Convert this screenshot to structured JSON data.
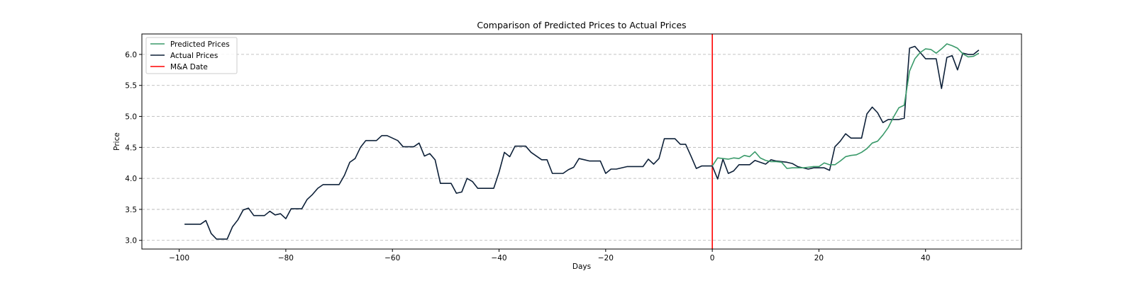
{
  "chart_data": {
    "type": "line",
    "title": "Comparison of Predicted Prices to Actual Prices",
    "xlabel": "Days",
    "ylabel": "Price",
    "xlim": [
      -107,
      58
    ],
    "ylim": [
      2.86,
      6.33
    ],
    "xticks": [
      -100,
      -80,
      -60,
      -40,
      -20,
      0,
      20,
      40
    ],
    "yticks": [
      3.0,
      3.5,
      4.0,
      4.5,
      5.0,
      5.5,
      6.0
    ],
    "grid": "horizontal dashed",
    "legend_position": "top-left",
    "colors": {
      "predicted": "#3a9a6a",
      "actual": "#0d2038",
      "ma_date": "#ff0000",
      "grid": "#b0b0b0"
    },
    "legend": [
      "Predicted Prices",
      "Actual Prices",
      "M&A Date"
    ],
    "vertical_line": {
      "name": "M&A Date",
      "x": 0
    },
    "series": [
      {
        "name": "Actual Prices",
        "x": [
          -99,
          -98,
          -97,
          -96,
          -95,
          -94,
          -93,
          -92,
          -91,
          -90,
          -89,
          -88,
          -87,
          -86,
          -85,
          -84,
          -83,
          -82,
          -81,
          -80,
          -79,
          -78,
          -77,
          -76,
          -75,
          -74,
          -73,
          -72,
          -71,
          -70,
          -69,
          -68,
          -67,
          -66,
          -65,
          -64,
          -63,
          -62,
          -61,
          -60,
          -59,
          -58,
          -57,
          -56,
          -55,
          -54,
          -53,
          -52,
          -51,
          -50,
          -49,
          -48,
          -47,
          -46,
          -45,
          -44,
          -43,
          -42,
          -41,
          -40,
          -39,
          -38,
          -37,
          -36,
          -35,
          -34,
          -33,
          -32,
          -31,
          -30,
          -29,
          -28,
          -27,
          -26,
          -25,
          -24,
          -23,
          -22,
          -21,
          -20,
          -19,
          -18,
          -17,
          -16,
          -15,
          -14,
          -13,
          -12,
          -11,
          -10,
          -9,
          -8,
          -7,
          -6,
          -5,
          -4,
          -3,
          -2,
          -1,
          0,
          1,
          2,
          3,
          4,
          5,
          6,
          7,
          8,
          9,
          10,
          11,
          12,
          13,
          14,
          15,
          16,
          17,
          18,
          19,
          20,
          21,
          22,
          23,
          24,
          25,
          26,
          27,
          28,
          29,
          30,
          31,
          32,
          33,
          34,
          35,
          36,
          37,
          38,
          39,
          40,
          41,
          42,
          43,
          44,
          45,
          46,
          47,
          48,
          49,
          50
        ],
        "values": [
          3.26,
          3.26,
          3.26,
          3.26,
          3.32,
          3.11,
          3.02,
          3.02,
          3.02,
          3.22,
          3.33,
          3.49,
          3.52,
          3.4,
          3.4,
          3.4,
          3.47,
          3.41,
          3.43,
          3.35,
          3.51,
          3.51,
          3.51,
          3.66,
          3.74,
          3.84,
          3.9,
          3.9,
          3.9,
          3.9,
          4.05,
          4.26,
          4.32,
          4.5,
          4.61,
          4.61,
          4.61,
          4.69,
          4.69,
          4.65,
          4.61,
          4.51,
          4.51,
          4.51,
          4.57,
          4.36,
          4.4,
          4.3,
          3.92,
          3.92,
          3.92,
          3.76,
          3.78,
          4.0,
          3.95,
          3.84,
          3.84,
          3.84,
          3.84,
          4.1,
          4.42,
          4.35,
          4.52,
          4.52,
          4.52,
          4.42,
          4.36,
          4.3,
          4.3,
          4.08,
          4.08,
          4.08,
          4.14,
          4.18,
          4.32,
          4.3,
          4.28,
          4.28,
          4.28,
          4.08,
          4.15,
          4.15,
          4.17,
          4.19,
          4.19,
          4.19,
          4.19,
          4.31,
          4.23,
          4.32,
          4.64,
          4.64,
          4.64,
          4.55,
          4.55,
          4.36,
          4.16,
          4.2,
          4.2,
          4.2,
          3.99,
          4.31,
          4.08,
          4.12,
          4.22,
          4.22,
          4.22,
          4.29,
          4.26,
          4.23,
          4.3,
          4.28,
          4.27,
          4.26,
          4.24,
          4.19,
          4.17,
          4.15,
          4.17,
          4.17,
          4.17,
          4.13,
          4.51,
          4.6,
          4.72,
          4.65,
          4.65,
          4.65,
          5.04,
          5.15,
          5.06,
          4.9,
          4.95,
          4.95,
          4.95,
          4.97,
          6.1,
          6.13,
          6.03,
          5.93,
          5.93,
          5.93,
          5.45,
          5.95,
          5.98,
          5.75,
          6.02,
          6.0,
          6.0,
          6.07
        ]
      },
      {
        "name": "Predicted Prices",
        "x": [
          0,
          1,
          2,
          3,
          4,
          5,
          6,
          7,
          8,
          9,
          10,
          11,
          12,
          13,
          14,
          15,
          16,
          17,
          18,
          19,
          20,
          21,
          22,
          23,
          24,
          25,
          26,
          27,
          28,
          29,
          30,
          31,
          32,
          33,
          34,
          35,
          36,
          37,
          38,
          39,
          40,
          41,
          42,
          43,
          44,
          45,
          46,
          47,
          48,
          49,
          50
        ],
        "values": [
          4.2,
          4.33,
          4.32,
          4.31,
          4.33,
          4.32,
          4.37,
          4.35,
          4.43,
          4.33,
          4.29,
          4.27,
          4.27,
          4.26,
          4.16,
          4.17,
          4.17,
          4.17,
          4.18,
          4.19,
          4.19,
          4.25,
          4.22,
          4.22,
          4.28,
          4.35,
          4.37,
          4.38,
          4.42,
          4.48,
          4.57,
          4.6,
          4.7,
          4.82,
          4.99,
          5.14,
          5.18,
          5.73,
          5.93,
          6.03,
          6.09,
          6.08,
          6.02,
          6.09,
          6.17,
          6.14,
          6.1,
          6.01,
          5.96,
          5.97,
          6.02
        ]
      }
    ]
  }
}
